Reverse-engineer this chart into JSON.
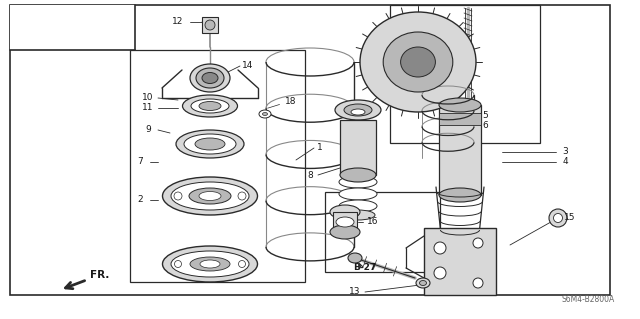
{
  "bg_color": "#ffffff",
  "line_color": "#2a2a2a",
  "text_color": "#1a1a1a",
  "diagram_code": "S6M4-B2800A",
  "figsize": [
    6.4,
    3.19
  ],
  "dpi": 100,
  "gray_light": "#d8d8d8",
  "gray_mid": "#b8b8b8",
  "gray_dark": "#888888",
  "white": "#ffffff"
}
